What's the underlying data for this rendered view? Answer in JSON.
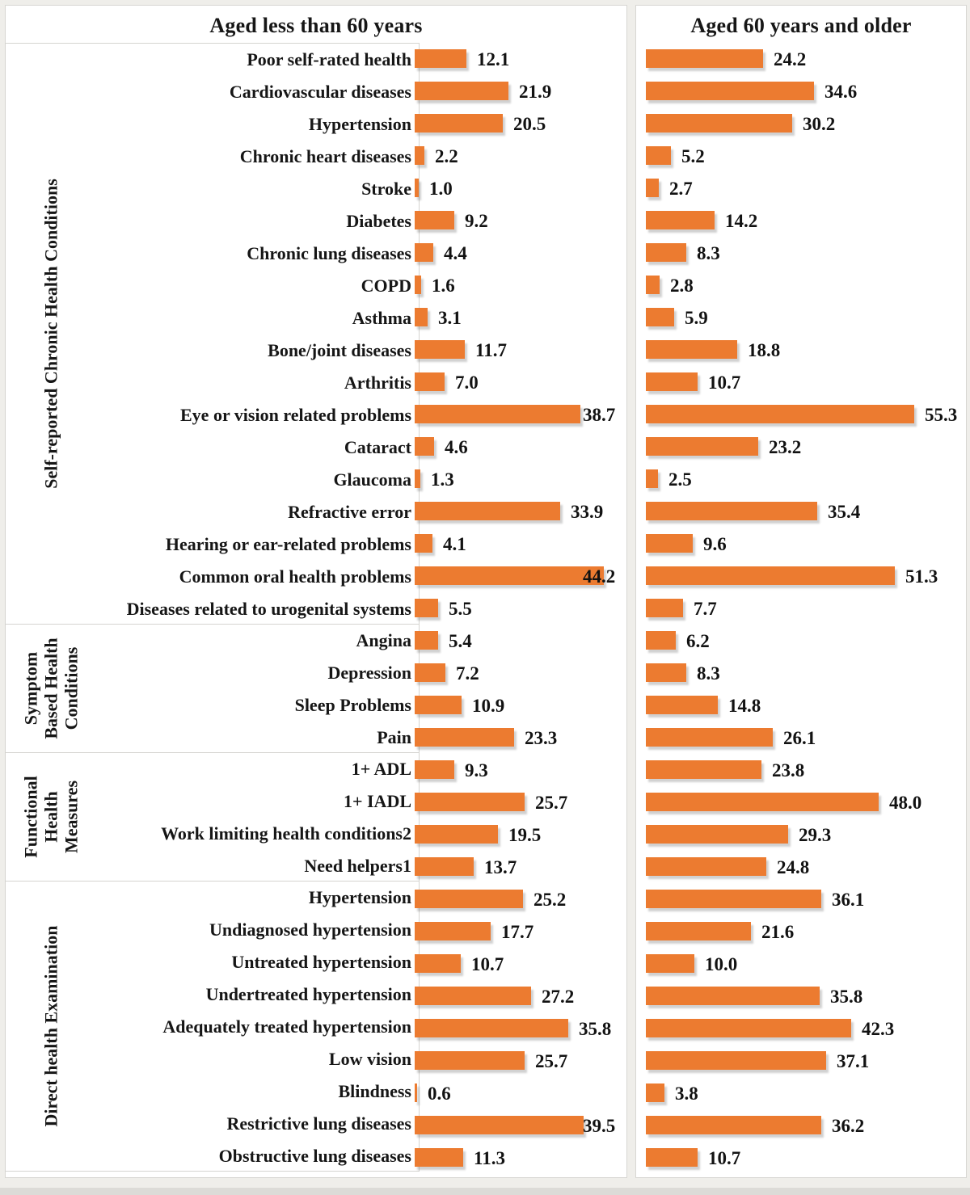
{
  "figure": {
    "left_title": "Aged less than 60 years",
    "right_title": "Aged 60 years and older",
    "bar_color": "#ec7b30",
    "text_color": "#161616",
    "value_decimals": 1
  },
  "chart_data": {
    "type": "bar",
    "orientation": "horizontal",
    "value_unit": "percent",
    "grid": false,
    "legend": false,
    "panels": [
      "Aged less than 60 years",
      "Aged 60 years and older"
    ],
    "series_names": [
      "Aged less than 60 years",
      "Aged 60 years and older"
    ],
    "xlim_left_panel": [
      0,
      47
    ],
    "xlim_right_panel": [
      0,
      60
    ],
    "groups": [
      {
        "label": "Self-reported Chronic Health Conditions",
        "label_display": "Self-reported Chronic Health Conditions",
        "items": [
          {
            "label": "Poor self-rated health",
            "lt60": 12.1,
            "ge60": 24.2
          },
          {
            "label": "Cardiovascular diseases",
            "lt60": 21.9,
            "ge60": 34.6
          },
          {
            "label": "Hypertension",
            "lt60": 20.5,
            "ge60": 30.2
          },
          {
            "label": "Chronic heart diseases",
            "lt60": 2.2,
            "ge60": 5.2
          },
          {
            "label": "Stroke",
            "lt60": 1.0,
            "ge60": 2.7
          },
          {
            "label": "Diabetes",
            "lt60": 9.2,
            "ge60": 14.2
          },
          {
            "label": "Chronic lung diseases",
            "lt60": 4.4,
            "ge60": 8.3
          },
          {
            "label": "COPD",
            "lt60": 1.6,
            "ge60": 2.8
          },
          {
            "label": "Asthma",
            "lt60": 3.1,
            "ge60": 5.9
          },
          {
            "label": "Bone/joint diseases",
            "lt60": 11.7,
            "ge60": 18.8
          },
          {
            "label": "Arthritis",
            "lt60": 7.0,
            "ge60": 10.7
          },
          {
            "label": "Eye or vision related problems",
            "lt60": 38.7,
            "ge60": 55.3
          },
          {
            "label": "Cataract",
            "lt60": 4.6,
            "ge60": 23.2
          },
          {
            "label": "Glaucoma",
            "lt60": 1.3,
            "ge60": 2.5
          },
          {
            "label": "Refractive error",
            "lt60": 33.9,
            "ge60": 35.4
          },
          {
            "label": "Hearing or ear-related problems",
            "lt60": 4.1,
            "ge60": 9.6
          },
          {
            "label": "Common oral health problems",
            "lt60": 44.2,
            "ge60": 51.3
          },
          {
            "label": "Diseases related to urogenital systems",
            "lt60": 5.5,
            "ge60": 7.7
          }
        ]
      },
      {
        "label": "Symptom Based Health Conditions",
        "label_display": "Symptom\nBased Health\nConditions",
        "items": [
          {
            "label": "Angina",
            "lt60": 5.4,
            "ge60": 6.2
          },
          {
            "label": "Depression",
            "lt60": 7.2,
            "ge60": 8.3
          },
          {
            "label": "Sleep Problems",
            "lt60": 10.9,
            "ge60": 14.8
          },
          {
            "label": "Pain",
            "lt60": 23.3,
            "ge60": 26.1
          }
        ]
      },
      {
        "label": "Functional Health Measures",
        "label_display": "Functional\nHealth\nMeasures",
        "items": [
          {
            "label": "1+ ADL",
            "lt60": 9.3,
            "ge60": 23.8
          },
          {
            "label": "1+ IADL",
            "lt60": 25.7,
            "ge60": 48.0
          },
          {
            "label": "Work limiting health conditions2",
            "lt60": 19.5,
            "ge60": 29.3
          },
          {
            "label": "Need helpers1",
            "lt60": 13.7,
            "ge60": 24.8
          }
        ]
      },
      {
        "label": "Direct health Examination",
        "label_display": "Direct health Examination",
        "items": [
          {
            "label": "Hypertension",
            "lt60": 25.2,
            "ge60": 36.1
          },
          {
            "label": "Undiagnosed hypertension",
            "lt60": 17.7,
            "ge60": 21.6
          },
          {
            "label": "Untreated hypertension",
            "lt60": 10.7,
            "ge60": 10.0
          },
          {
            "label": "Undertreated hypertension",
            "lt60": 27.2,
            "ge60": 35.8
          },
          {
            "label": "Adequately treated hypertension",
            "lt60": 35.8,
            "ge60": 42.3
          },
          {
            "label": "Low vision",
            "lt60": 25.7,
            "ge60": 37.1
          },
          {
            "label": "Blindness",
            "lt60": 0.6,
            "ge60": 3.8
          },
          {
            "label": "Restrictive lung diseases",
            "lt60": 39.5,
            "ge60": 36.2
          },
          {
            "label": "Obstructive lung diseases",
            "lt60": 11.3,
            "ge60": 10.7
          }
        ]
      }
    ]
  }
}
